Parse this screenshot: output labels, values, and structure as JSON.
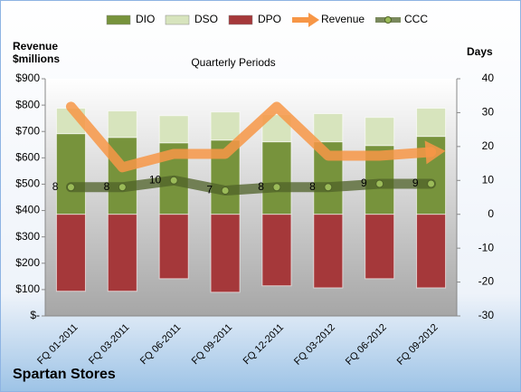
{
  "chart_data": {
    "type": "bar",
    "title": "Quarterly Periods",
    "y_label": "Revenue $millions",
    "y2_label": "Days",
    "company": "Spartan Stores",
    "categories": [
      "FQ 01-2011",
      "FQ 03-2011",
      "FQ 06-2011",
      "FQ 09-2011",
      "FQ 12-2011",
      "FQ 03-2012",
      "FQ 06-2012",
      "FQ 09-2012"
    ],
    "series": [
      {
        "name": "DIO",
        "type": "bar",
        "axis": "y2",
        "color": "#77933c",
        "values": [
          23.8,
          22.7,
          21.1,
          21.9,
          21.4,
          21.4,
          20.3,
          23.0
        ]
      },
      {
        "name": "DSO",
        "type": "bar",
        "axis": "y2",
        "color": "#d7e4bd",
        "values": [
          7.5,
          7.8,
          8.0,
          8.3,
          8.0,
          8.3,
          8.3,
          8.3
        ]
      },
      {
        "name": "DPO",
        "type": "bar",
        "axis": "y2",
        "color": "#a5383a",
        "values": [
          -22.7,
          -22.7,
          -19.0,
          -23.0,
          -21.1,
          -21.7,
          -19.0,
          -21.7
        ]
      },
      {
        "name": "Revenue",
        "type": "line",
        "axis": "y",
        "color": "#f79646",
        "values": [
          794,
          564,
          615,
          615,
          794,
          608,
          608,
          622
        ]
      },
      {
        "name": "CCC",
        "type": "line",
        "axis": "y2",
        "color": "#4f6228",
        "values": [
          8,
          8,
          10,
          7,
          8,
          8,
          9,
          9
        ]
      }
    ],
    "ylim": [
      0,
      900
    ],
    "yticks": [
      {
        "value": 0,
        "label": "$-"
      },
      {
        "value": 100,
        "label": "$100"
      },
      {
        "value": 200,
        "label": "$200"
      },
      {
        "value": 300,
        "label": "$300"
      },
      {
        "value": 400,
        "label": "$400"
      },
      {
        "value": 500,
        "label": "$500"
      },
      {
        "value": 600,
        "label": "$600"
      },
      {
        "value": 700,
        "label": "$700"
      },
      {
        "value": 800,
        "label": "$800"
      },
      {
        "value": 900,
        "label": "$900"
      }
    ],
    "y2lim": [
      -30,
      40
    ],
    "y2ticks": [
      -30,
      -20,
      -10,
      0,
      10,
      20,
      30,
      40
    ],
    "legend": "top"
  }
}
